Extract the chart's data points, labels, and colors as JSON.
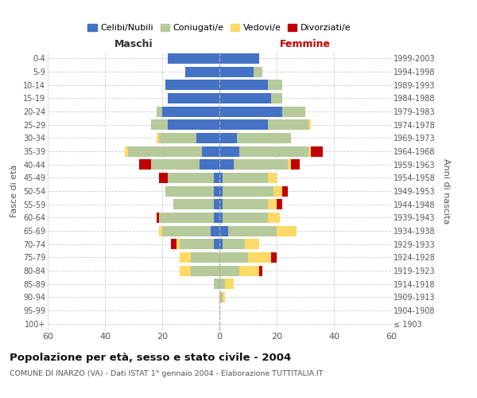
{
  "age_groups": [
    "100+",
    "95-99",
    "90-94",
    "85-89",
    "80-84",
    "75-79",
    "70-74",
    "65-69",
    "60-64",
    "55-59",
    "50-54",
    "45-49",
    "40-44",
    "35-39",
    "30-34",
    "25-29",
    "20-24",
    "15-19",
    "10-14",
    "5-9",
    "0-4"
  ],
  "birth_years": [
    "≤ 1903",
    "1904-1908",
    "1909-1913",
    "1914-1918",
    "1919-1923",
    "1924-1928",
    "1929-1933",
    "1934-1938",
    "1939-1943",
    "1944-1948",
    "1949-1953",
    "1954-1958",
    "1959-1963",
    "1964-1968",
    "1969-1973",
    "1974-1978",
    "1979-1983",
    "1984-1988",
    "1989-1993",
    "1994-1998",
    "1999-2003"
  ],
  "male": {
    "celibi": [
      0,
      0,
      0,
      0,
      0,
      0,
      2,
      3,
      2,
      2,
      2,
      2,
      7,
      6,
      8,
      18,
      20,
      18,
      19,
      12,
      18
    ],
    "coniugati": [
      0,
      0,
      0,
      2,
      10,
      10,
      12,
      17,
      19,
      14,
      17,
      16,
      17,
      26,
      13,
      6,
      2,
      0,
      0,
      0,
      0
    ],
    "vedovi": [
      0,
      0,
      0,
      0,
      4,
      4,
      1,
      1,
      0,
      0,
      0,
      0,
      0,
      1,
      1,
      0,
      0,
      0,
      0,
      0,
      0
    ],
    "divorziati": [
      0,
      0,
      0,
      0,
      0,
      0,
      2,
      0,
      1,
      0,
      0,
      3,
      4,
      0,
      0,
      0,
      0,
      0,
      0,
      0,
      0
    ]
  },
  "female": {
    "nubili": [
      0,
      0,
      0,
      0,
      0,
      0,
      1,
      3,
      1,
      1,
      1,
      1,
      5,
      7,
      6,
      17,
      22,
      18,
      17,
      12,
      14
    ],
    "coniugate": [
      0,
      0,
      1,
      2,
      7,
      10,
      8,
      17,
      16,
      16,
      18,
      16,
      19,
      24,
      19,
      14,
      8,
      4,
      5,
      3,
      0
    ],
    "vedove": [
      0,
      0,
      1,
      3,
      7,
      8,
      5,
      7,
      4,
      3,
      3,
      3,
      1,
      1,
      0,
      1,
      0,
      0,
      0,
      0,
      0
    ],
    "divorziate": [
      0,
      0,
      0,
      0,
      1,
      2,
      0,
      0,
      0,
      2,
      2,
      0,
      3,
      4,
      0,
      0,
      0,
      0,
      0,
      0,
      0
    ]
  },
  "colors": {
    "celibi_nubili": "#4472c4",
    "coniugati": "#b5c99a",
    "vedovi": "#ffd966",
    "divorziati": "#c00000"
  },
  "title": "Popolazione per età, sesso e stato civile - 2004",
  "subtitle": "COMUNE DI INARZO (VA) - Dati ISTAT 1° gennaio 2004 - Elaborazione TUTTITALIA.IT",
  "ylabel_left": "Fasce di età",
  "ylabel_right": "Anni di nascita",
  "xlabel_left": "Maschi",
  "xlabel_right": "Femmine",
  "xlim": 60,
  "legend_labels": [
    "Celibi/Nubili",
    "Coniugati/e",
    "Vedovi/e",
    "Divorziati/e"
  ],
  "background_color": "#ffffff"
}
